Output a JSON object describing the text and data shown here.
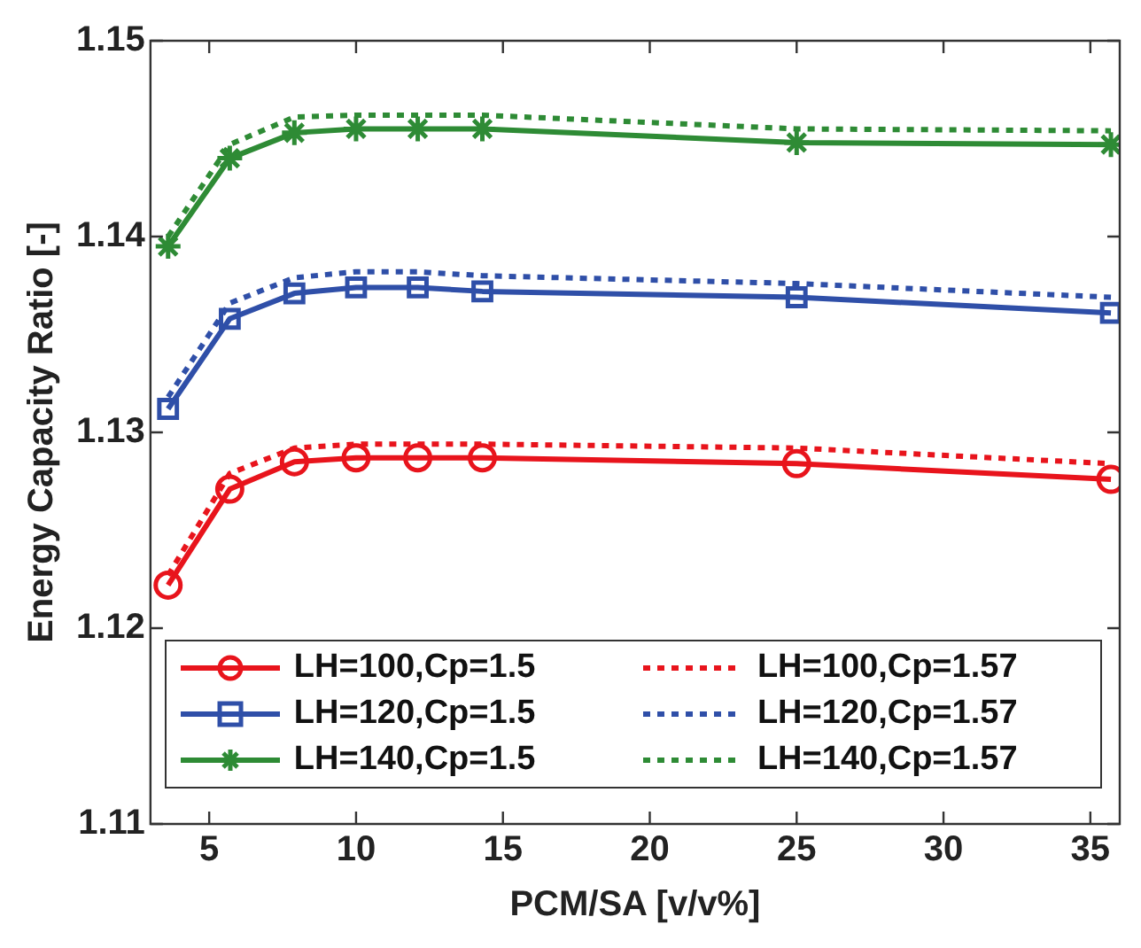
{
  "chart_data": {
    "type": "line",
    "xlabel": "PCM/SA [v/v%]",
    "ylabel": "Energy Capacity Ratio [-]",
    "x": [
      3.6,
      5.7,
      7.9,
      10,
      12.1,
      14.3,
      25,
      35.7
    ],
    "xlim": [
      3,
      36
    ],
    "xticks": [
      5,
      10,
      15,
      20,
      25,
      30,
      35
    ],
    "ylim": [
      1.11,
      1.15
    ],
    "yticks": [
      1.11,
      1.12,
      1.13,
      1.14,
      1.15
    ],
    "legend": "bottom",
    "series": [
      {
        "name": "LH=100,Cp=1.5",
        "color": "#e8141c",
        "marker": "circle",
        "line_style": "solid",
        "values": [
          1.1222,
          1.1271,
          1.1285,
          1.1287,
          1.1287,
          1.1287,
          1.1284,
          1.1276
        ]
      },
      {
        "name": "LH=100,Cp=1.57",
        "color": "#e8141c",
        "marker": "none",
        "line_style": "dotted",
        "values": [
          1.1227,
          1.1279,
          1.1292,
          1.1294,
          1.1294,
          1.1294,
          1.1292,
          1.1284
        ]
      },
      {
        "name": "LH=120,Cp=1.5",
        "color": "#2f4fa8",
        "marker": "square",
        "line_style": "solid",
        "values": [
          1.1312,
          1.1358,
          1.1371,
          1.1374,
          1.1374,
          1.1372,
          1.1369,
          1.1361
        ]
      },
      {
        "name": "LH=120,Cp=1.57",
        "color": "#2f4fa8",
        "marker": "none",
        "line_style": "dotted",
        "values": [
          1.1318,
          1.1366,
          1.1379,
          1.1382,
          1.1382,
          1.138,
          1.1376,
          1.1369
        ]
      },
      {
        "name": "LH=140,Cp=1.5",
        "color": "#2e8b35",
        "marker": "cross",
        "line_style": "solid",
        "values": [
          1.1395,
          1.144,
          1.1453,
          1.1455,
          1.1455,
          1.1455,
          1.1448,
          1.1447
        ]
      },
      {
        "name": "LH=140,Cp=1.57",
        "color": "#2e8b35",
        "marker": "none",
        "line_style": "dotted",
        "values": [
          1.14,
          1.1447,
          1.1461,
          1.1462,
          1.1462,
          1.1462,
          1.1455,
          1.1454
        ]
      }
    ]
  }
}
